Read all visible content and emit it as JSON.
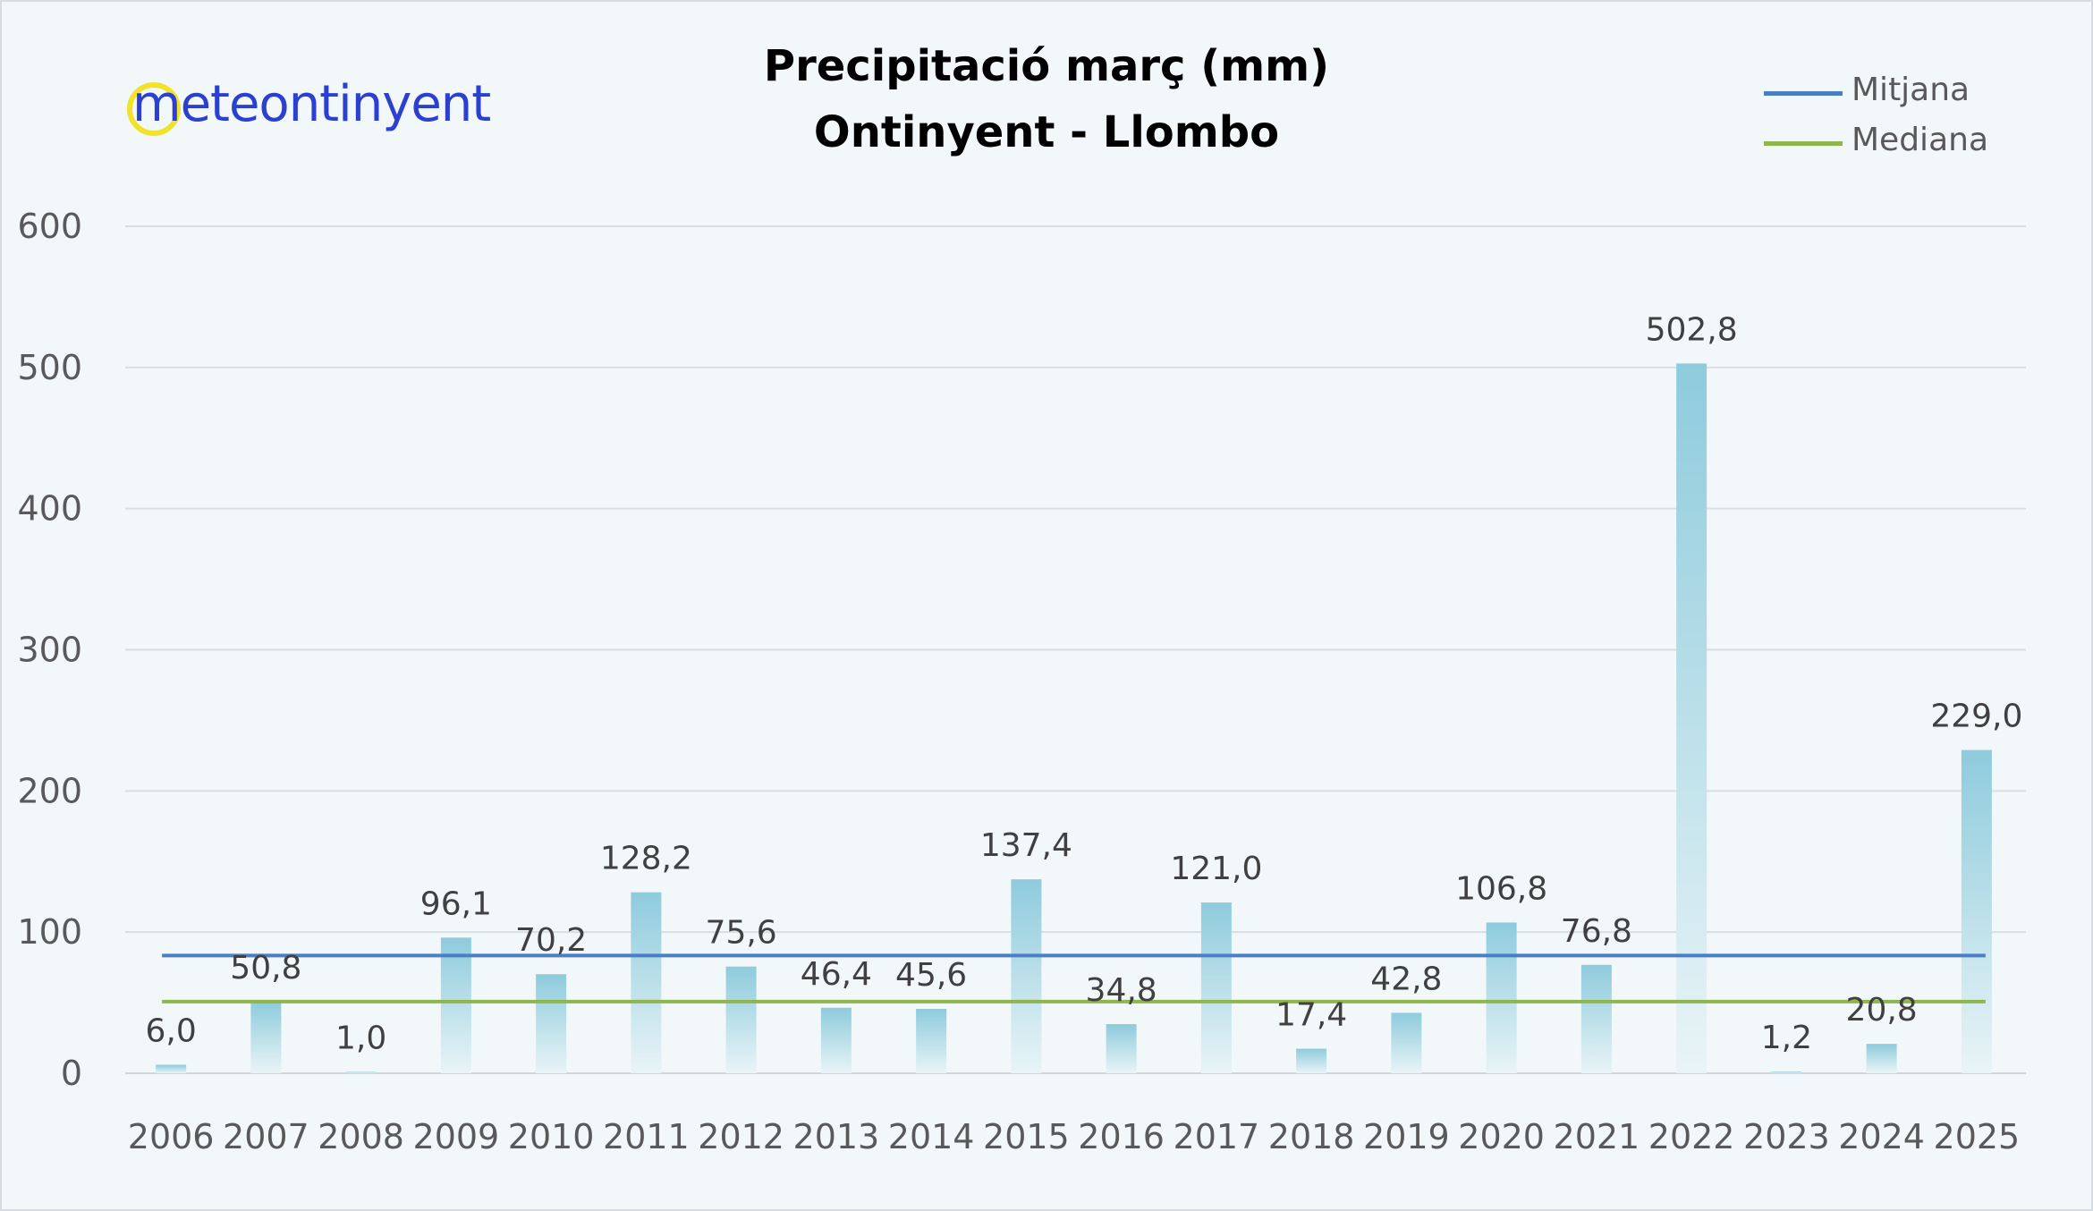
{
  "chart_data": {
    "type": "bar",
    "title": "Precipitació març (mm)",
    "subtitle": "Ontinyent - Llombo",
    "categories": [
      "2006",
      "2007",
      "2008",
      "2009",
      "2010",
      "2011",
      "2012",
      "2013",
      "2014",
      "2015",
      "2016",
      "2017",
      "2018",
      "2019",
      "2020",
      "2021",
      "2022",
      "2023",
      "2024",
      "2025"
    ],
    "values": [
      6.0,
      50.8,
      1.0,
      96.1,
      70.2,
      128.2,
      75.6,
      46.4,
      45.6,
      137.4,
      34.8,
      121.0,
      17.4,
      42.8,
      106.8,
      76.8,
      502.8,
      1.2,
      20.8,
      229.0
    ],
    "data_labels": [
      "6,0",
      "50,8",
      "1,0",
      "96,1",
      "70,2",
      "128,2",
      "75,6",
      "46,4",
      "45,6",
      "137,4",
      "34,8",
      "121,0",
      "17,4",
      "42,8",
      "106,8",
      "76,8",
      "502,8",
      "1,2",
      "20,8",
      "229,0"
    ],
    "ylim": [
      0,
      600
    ],
    "yticks": [
      0,
      100,
      200,
      300,
      400,
      500,
      600
    ],
    "xlabel": "",
    "ylabel": "",
    "grid": true,
    "reference_lines": [
      {
        "name": "Mitjana",
        "value": 83.4,
        "color": "#4a7fc8"
      },
      {
        "name": "Mediana",
        "value": 50.8,
        "color": "#8fb64a"
      }
    ],
    "legend_position": "top-right",
    "bar_color_top": "#8ecbdc",
    "bar_color_bottom": "#e9f4f7"
  },
  "logo": {
    "text_first": "m",
    "text_rest": "eteontinyent"
  }
}
